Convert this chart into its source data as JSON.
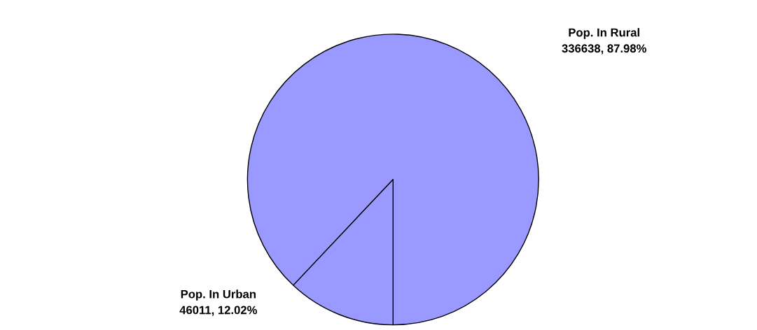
{
  "chart_data": {
    "type": "pie",
    "categories": [
      "Pop. In Rural",
      "Pop. In Urban"
    ],
    "values": [
      336638,
      46011
    ],
    "colors": [
      "#9999ff",
      "#9999ff"
    ],
    "value_labels": [
      "336638, 87.98%",
      "46011, 12.02%"
    ]
  }
}
